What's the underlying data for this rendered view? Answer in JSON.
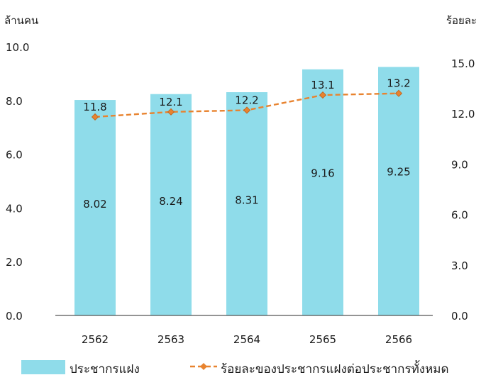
{
  "chart_data": {
    "type": "bar",
    "categories": [
      "2562",
      "2563",
      "2564",
      "2565",
      "2566"
    ],
    "y_left_label": "ล้านคน",
    "y_right_label": "ร้อยละ",
    "y_left_ticks": [
      "0.0",
      "2.0",
      "4.0",
      "6.0",
      "8.0",
      "10.0"
    ],
    "y_right_ticks": [
      "0.0",
      "3.0",
      "6.0",
      "9.0",
      "12.0",
      "15.0"
    ],
    "ylim_left": [
      0,
      10
    ],
    "ylim_right": [
      0,
      15
    ],
    "grid": false,
    "legend_position": "bottom",
    "series": [
      {
        "name": "ประชากรแฝง",
        "kind": "bar",
        "axis": "left",
        "values": [
          8.02,
          8.24,
          8.31,
          9.16,
          9.25
        ],
        "labels": [
          "8.02",
          "8.24",
          "8.31",
          "9.16",
          "9.25"
        ]
      },
      {
        "name": "ร้อยละของประชากรแฝงต่อประชากรทั้งหมด",
        "kind": "line",
        "axis": "right",
        "values": [
          11.8,
          12.1,
          12.2,
          13.1,
          13.2
        ],
        "labels": [
          "11.8",
          "12.1",
          "12.2",
          "13.1",
          "13.2"
        ]
      }
    ],
    "colors": {
      "bar": "#8fdcea",
      "line": "#e8832f",
      "axis": "#555555"
    }
  }
}
